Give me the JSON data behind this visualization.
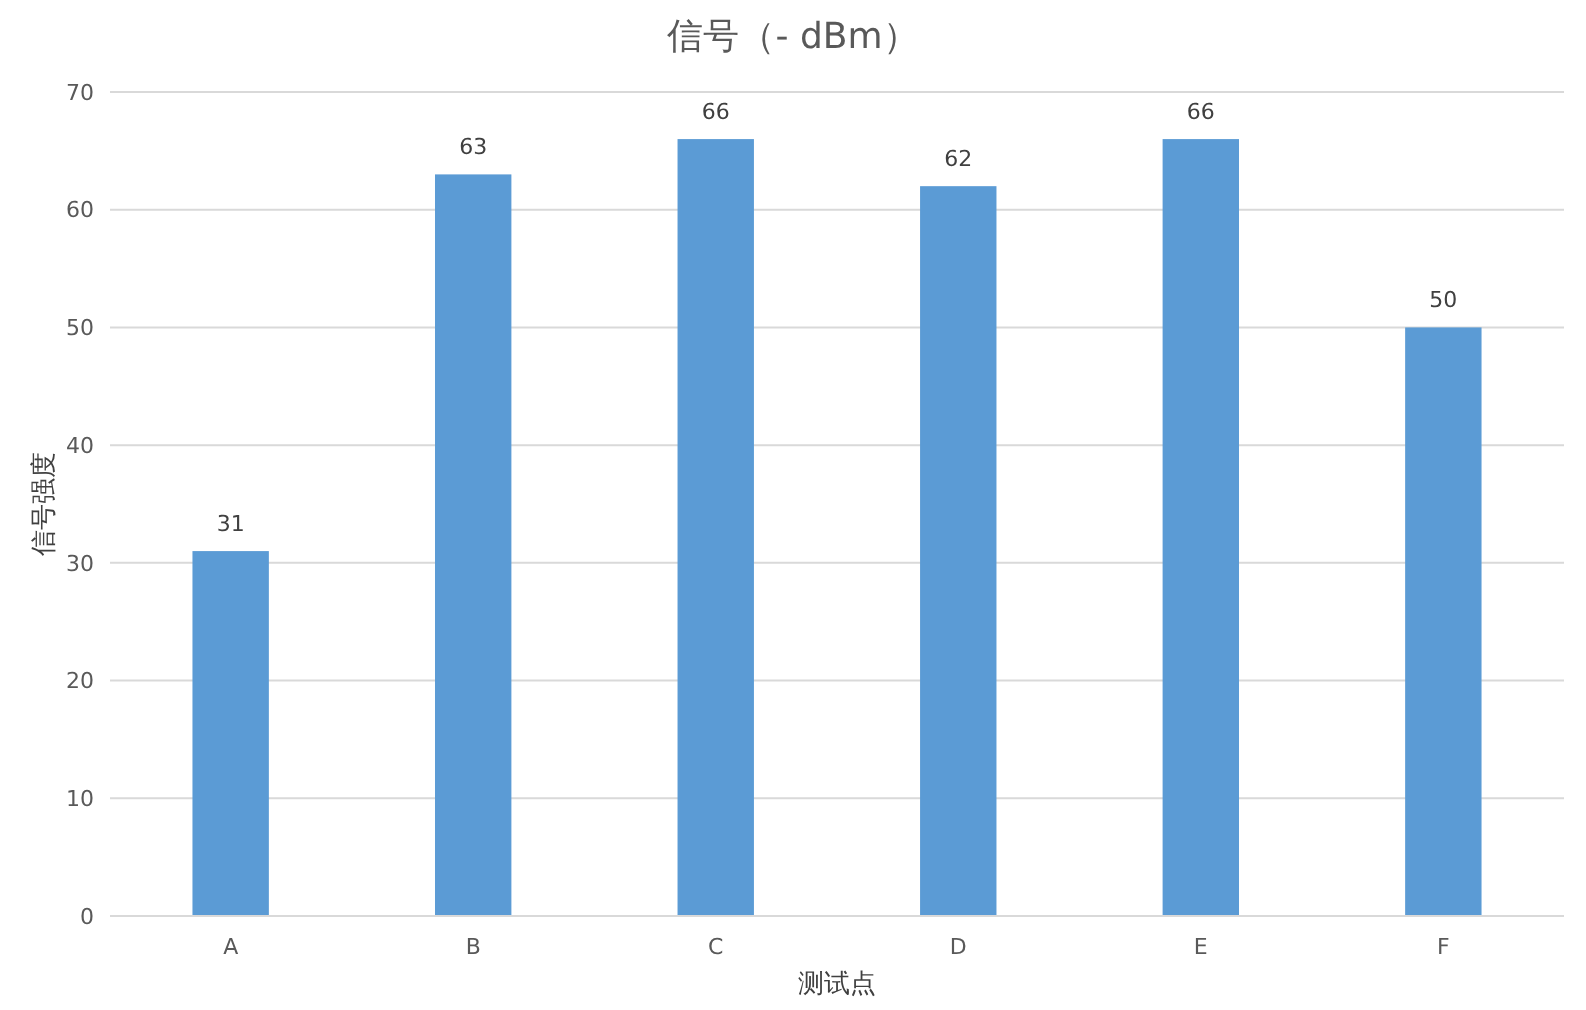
{
  "chart_data": {
    "type": "bar",
    "title": "信号（- dBm）",
    "xlabel": "测试点",
    "ylabel": "信号强度",
    "categories": [
      "A",
      "B",
      "C",
      "D",
      "E",
      "F"
    ],
    "values": [
      31,
      63,
      66,
      62,
      66,
      50
    ],
    "color": "#5b9bd5",
    "ylim": [
      0,
      70
    ],
    "yticks": [
      0,
      10,
      20,
      30,
      40,
      50,
      60,
      70
    ],
    "grid": "y",
    "data_labels": true
  }
}
